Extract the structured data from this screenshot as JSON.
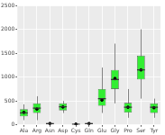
{
  "chart_data": {
    "type": "box",
    "categories": [
      "Ala",
      "Arg",
      "Asn",
      "Asp",
      "Cys",
      "Gln",
      "Glu",
      "Gly",
      "Pro",
      "Ser",
      "Tyr"
    ],
    "min": [
      100,
      100,
      0,
      250,
      0,
      0,
      250,
      450,
      150,
      550,
      150
    ],
    "q1": [
      180,
      250,
      10,
      300,
      5,
      15,
      400,
      750,
      260,
      950,
      250
    ],
    "median": [
      250,
      350,
      25,
      380,
      15,
      25,
      550,
      950,
      370,
      1150,
      370
    ],
    "q3": [
      330,
      450,
      40,
      450,
      25,
      40,
      750,
      1150,
      460,
      1450,
      450
    ],
    "max": [
      430,
      600,
      60,
      500,
      40,
      60,
      1200,
      1700,
      750,
      2000,
      550
    ],
    "mean": [
      260,
      330,
      28,
      375,
      16,
      27,
      520,
      970,
      370,
      1150,
      360
    ],
    "color": "#33ee33",
    "ylim": [
      0,
      2500
    ],
    "yticks": [
      0,
      500,
      1000,
      1500,
      2000,
      2500
    ],
    "grid": true
  }
}
